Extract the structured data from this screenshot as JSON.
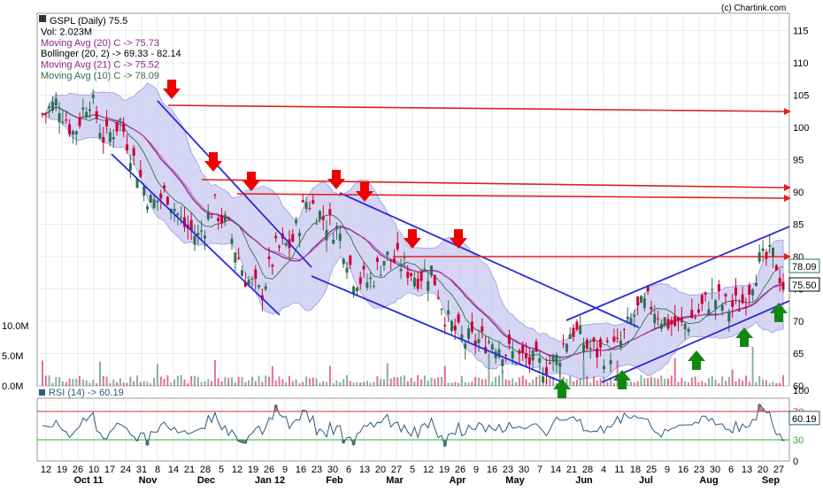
{
  "header": {
    "title": "GSPL (Daily) 75.5",
    "copyright": "(c) Chartink.com"
  },
  "legend": [
    {
      "text": "GSPL (Daily) 75.5",
      "color": "#000000"
    },
    {
      "text": "Vol: 2.023M",
      "color": "#000000"
    },
    {
      "text": "Moving Avg (20) C -> 75.73",
      "color": "#8b2a8b"
    },
    {
      "text": "Bollinger (20, 2) -> 69.33 - 82.14",
      "color": "#000000"
    },
    {
      "text": "Moving Avg (21) C -> 75.52",
      "color": "#8b2a8b"
    },
    {
      "text": "Moving Avg (10) C -> 78.09",
      "color": "#2f6f4f"
    }
  ],
  "rsi_label": "RSI (14) -> 60.19",
  "price_axis": [
    "115",
    "110",
    "105",
    "100",
    "95",
    "90",
    "85",
    "80",
    "75",
    "70",
    "65",
    "60"
  ],
  "volume_axis": [
    "10.0M",
    "5.0M",
    "0.0M"
  ],
  "rsi_axis": [
    "100",
    "70",
    "30",
    "0"
  ],
  "price_tags": [
    {
      "text": "78.09",
      "bg": "#ffffff",
      "fg": "#000000",
      "border": "#2f6f4f"
    },
    {
      "text": "75.50",
      "bg": "#ffffff",
      "fg": "#000000",
      "border": "#000000"
    }
  ],
  "rsi_tag": "60.19",
  "day_labels": [
    "12",
    "19",
    "26",
    "10",
    "17",
    "24",
    "31",
    "8",
    "14",
    "21",
    "28",
    "5",
    "12",
    "19",
    "26",
    "9",
    "16",
    "23",
    "30",
    "6",
    "13",
    "20",
    "27",
    "5",
    "12",
    "19",
    "26",
    "9",
    "16",
    "23",
    "30",
    "7",
    "14",
    "21",
    "28",
    "4",
    "11",
    "18",
    "25",
    "9",
    "16",
    "23",
    "30",
    "6",
    "13",
    "20",
    "27"
  ],
  "month_labels": [
    "Oct 11",
    "Nov",
    "Dec",
    "Jan 12",
    "Feb",
    "Mar",
    "Apr",
    "May",
    "Jun",
    "Jul",
    "Aug",
    "Sep"
  ],
  "colors": {
    "up": "#2f6f4f",
    "down": "#cc0033",
    "band": "#c8c8f0",
    "trend": "#2b2bd9",
    "resistance": "#e02020",
    "arrow_down": "#ee0000",
    "arrow_up": "#118811",
    "grid": "#d0d8e0",
    "rsi_line": "#2d5a80"
  },
  "chart_data": {
    "type": "candlestick",
    "title": "GSPL (Daily) 75.5",
    "ylim": [
      60,
      117
    ],
    "y_ticks": [
      60,
      65,
      70,
      75,
      80,
      85,
      90,
      95,
      100,
      105,
      110,
      115
    ],
    "x_range": [
      "2011-10-10",
      "2012-09-07"
    ],
    "close_path": [
      [
        "2011-10-10",
        102
      ],
      [
        "2011-10-17",
        104
      ],
      [
        "2011-10-24",
        99
      ],
      [
        "2011-10-31",
        105
      ],
      [
        "2011-11-07",
        98
      ],
      [
        "2011-11-14",
        101
      ],
      [
        "2011-11-21",
        94
      ],
      [
        "2011-11-28",
        88
      ],
      [
        "2011-12-05",
        90
      ],
      [
        "2011-12-12",
        85
      ],
      [
        "2011-12-19",
        83
      ],
      [
        "2011-12-26",
        88
      ],
      [
        "2012-01-02",
        84
      ],
      [
        "2012-01-09",
        77
      ],
      [
        "2012-01-16",
        74
      ],
      [
        "2012-01-23",
        81
      ],
      [
        "2012-01-30",
        82
      ],
      [
        "2012-02-06",
        89
      ],
      [
        "2012-02-13",
        86
      ],
      [
        "2012-02-20",
        84
      ],
      [
        "2012-02-27",
        77
      ],
      [
        "2012-03-05",
        76
      ],
      [
        "2012-03-12",
        80
      ],
      [
        "2012-03-19",
        79
      ],
      [
        "2012-03-26",
        77
      ],
      [
        "2012-04-02",
        78
      ],
      [
        "2012-04-09",
        70
      ],
      [
        "2012-04-16",
        67
      ],
      [
        "2012-04-23",
        67
      ],
      [
        "2012-04-30",
        67
      ],
      [
        "2012-05-07",
        65
      ],
      [
        "2012-05-14",
        64
      ],
      [
        "2012-05-21",
        63
      ],
      [
        "2012-05-28",
        64
      ],
      [
        "2012-06-04",
        69
      ],
      [
        "2012-06-11",
        66
      ],
      [
        "2012-06-18",
        65
      ],
      [
        "2012-06-25",
        66
      ],
      [
        "2012-07-02",
        71
      ],
      [
        "2012-07-09",
        73
      ],
      [
        "2012-07-16",
        70
      ],
      [
        "2012-07-23",
        69
      ],
      [
        "2012-07-30",
        71
      ],
      [
        "2012-08-06",
        74
      ],
      [
        "2012-08-13",
        72
      ],
      [
        "2012-08-20",
        73
      ],
      [
        "2012-08-27",
        79
      ],
      [
        "2012-09-03",
        80
      ],
      [
        "2012-09-07",
        75.5
      ]
    ],
    "indicators": {
      "moving_avg_20": 75.73,
      "bollinger_20_2": [
        69.33,
        82.14
      ],
      "moving_avg_21": 75.52,
      "moving_avg_10": 78.09,
      "volume": "2.023M",
      "rsi_14": 60.19
    },
    "volume_axis_ticks": [
      "0.0M",
      "5.0M",
      "10.0M"
    ],
    "rsi_ticks": [
      0,
      30,
      70,
      100
    ]
  }
}
